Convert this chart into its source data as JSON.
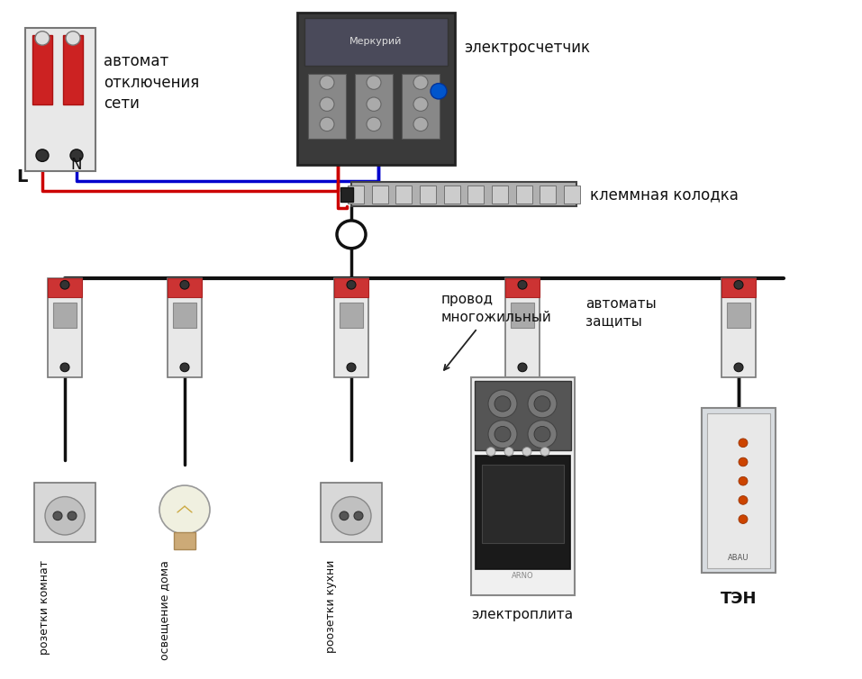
{
  "bg_color": "#ffffff",
  "wire_color_red": "#cc0000",
  "wire_color_blue": "#0000cc",
  "wire_color_black": "#111111",
  "label_L": "L",
  "label_N": "N",
  "label_avtomat": "автомат\nотключения\nсети",
  "label_meter": "электросчетчик",
  "label_terminal": "клеммная колодка",
  "label_avtozash": "автоматы\nзащиты",
  "label_provod": "провод\nмногожильный",
  "label_rozetki_komnat": "розетки комнат",
  "label_osveshenie": "освещение дома",
  "label_rozetki_kuhni": "роозетки кухни",
  "label_elektroplita": "электроплита",
  "label_ten": "ТЭН"
}
